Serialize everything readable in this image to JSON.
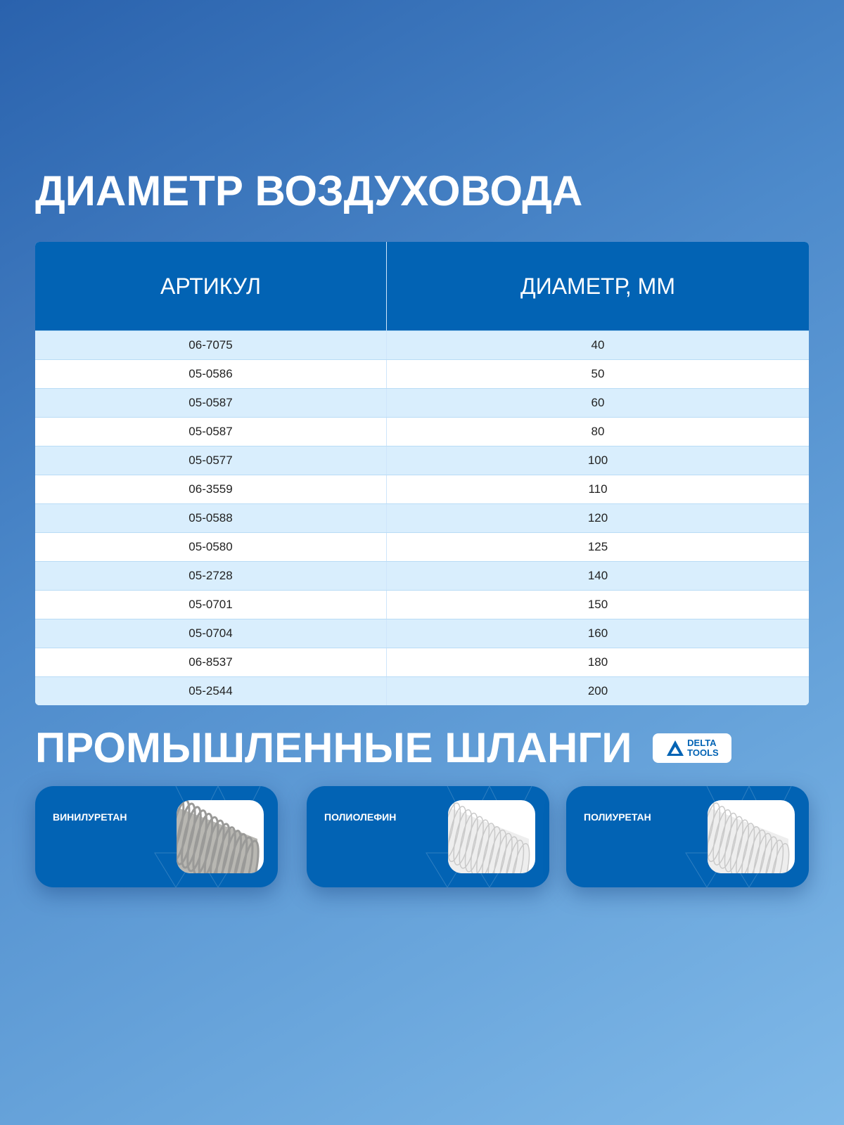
{
  "title1": "ДИАМЕТР ВОЗДУХОВОДА",
  "table": {
    "headers": [
      "АРТИКУЛ",
      "ДИАМЕТР, ММ"
    ],
    "rows": [
      [
        "06-7075",
        "40"
      ],
      [
        "05-0586",
        "50"
      ],
      [
        "05-0587",
        "60"
      ],
      [
        "05-0587",
        "80"
      ],
      [
        "05-0577",
        "100"
      ],
      [
        "06-3559",
        "110"
      ],
      [
        "05-0588",
        "120"
      ],
      [
        "05-0580",
        "125"
      ],
      [
        "05-2728",
        "140"
      ],
      [
        "05-0701",
        "150"
      ],
      [
        "05-0704",
        "160"
      ],
      [
        "06-8537",
        "180"
      ],
      [
        "05-2544",
        "200"
      ]
    ]
  },
  "title2": "ПРОМЫШЛЕННЫЕ ШЛАНГИ",
  "logo": {
    "line1": "DELTA",
    "line2": "TOOLS"
  },
  "cards": [
    {
      "label": "ВИНИЛУРЕТАН",
      "hose": "grey"
    },
    {
      "label": "ПОЛИОЛЕФИН",
      "hose": "clear"
    },
    {
      "label": "ПОЛИУРЕТАН",
      "hose": "clear"
    }
  ],
  "colors": {
    "brand": "#0263b4",
    "row_alt": "#d9eefd"
  }
}
